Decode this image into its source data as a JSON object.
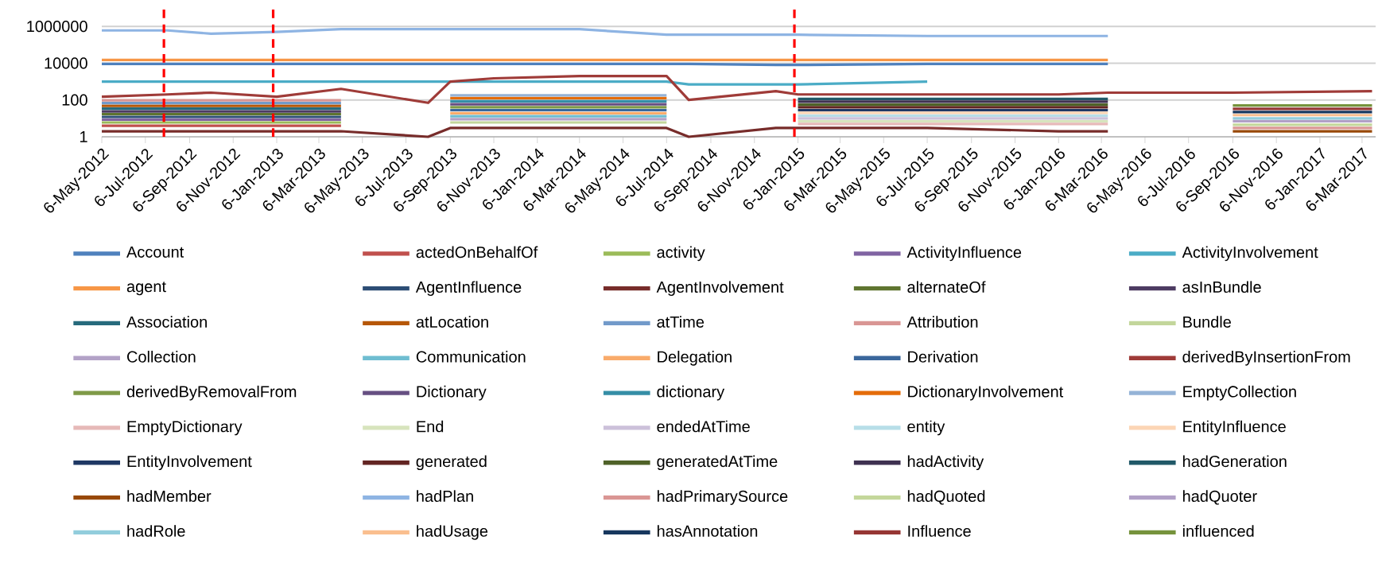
{
  "chart_data": {
    "type": "line",
    "log": "y",
    "grid": "y",
    "legend": "bottom",
    "x": [
      "2012-05-06",
      "2012-08-06",
      "2012-10-06",
      "2013-01-06",
      "2013-04-06",
      "2013-08-06",
      "2013-09-06",
      "2013-11-06",
      "2014-03-06",
      "2014-07-06",
      "2014-08-06",
      "2014-12-06",
      "2015-01-06",
      "2015-07-06",
      "2016-01-06",
      "2016-03-15",
      "2016-09-06",
      "2017-03-20"
    ],
    "xlim": [
      "2012-05-06",
      "2017-03-25"
    ],
    "xticks": [
      {
        "value": "2012-05-06",
        "label": "6-May-2012"
      },
      {
        "value": "2012-07-06",
        "label": "6-Jul-2012"
      },
      {
        "value": "2012-09-06",
        "label": "6-Sep-2012"
      },
      {
        "value": "2012-11-06",
        "label": "6-Nov-2012"
      },
      {
        "value": "2013-01-06",
        "label": "6-Jan-2013"
      },
      {
        "value": "2013-03-06",
        "label": "6-Mar-2013"
      },
      {
        "value": "2013-05-06",
        "label": "6-May-2013"
      },
      {
        "value": "2013-07-06",
        "label": "6-Jul-2013"
      },
      {
        "value": "2013-09-06",
        "label": "6-Sep-2013"
      },
      {
        "value": "2013-11-06",
        "label": "6-Nov-2013"
      },
      {
        "value": "2014-01-06",
        "label": "6-Jan-2014"
      },
      {
        "value": "2014-03-06",
        "label": "6-Mar-2014"
      },
      {
        "value": "2014-05-06",
        "label": "6-May-2014"
      },
      {
        "value": "2014-07-06",
        "label": "6-Jul-2014"
      },
      {
        "value": "2014-09-06",
        "label": "6-Sep-2014"
      },
      {
        "value": "2014-11-06",
        "label": "6-Nov-2014"
      },
      {
        "value": "2015-01-06",
        "label": "6-Jan-2015"
      },
      {
        "value": "2015-03-06",
        "label": "6-Mar-2015"
      },
      {
        "value": "2015-05-06",
        "label": "6-May-2015"
      },
      {
        "value": "2015-07-06",
        "label": "6-Jul-2015"
      },
      {
        "value": "2015-09-06",
        "label": "6-Sep-2015"
      },
      {
        "value": "2015-11-06",
        "label": "6-Nov-2015"
      },
      {
        "value": "2016-01-06",
        "label": "6-Jan-2016"
      },
      {
        "value": "2016-03-06",
        "label": "6-Mar-2016"
      },
      {
        "value": "2016-05-06",
        "label": "6-May-2016"
      },
      {
        "value": "2016-07-06",
        "label": "6-Jul-2016"
      },
      {
        "value": "2016-09-06",
        "label": "6-Sep-2016"
      },
      {
        "value": "2016-11-06",
        "label": "6-Nov-2016"
      },
      {
        "value": "2017-01-06",
        "label": "6-Jan-2017"
      },
      {
        "value": "2017-03-06",
        "label": "6-Mar-2017"
      }
    ],
    "ylim": [
      1,
      10000000
    ],
    "yticks": [
      1,
      100,
      10000,
      1000000
    ],
    "ref_lines": [
      {
        "axis": "x",
        "value": "2012-08-01",
        "color": "#ff0000",
        "line_style": "dashed"
      },
      {
        "axis": "x",
        "value": "2013-01-01",
        "color": "#ff0000",
        "line_style": "dashed"
      },
      {
        "axis": "x",
        "value": "2015-01-01",
        "color": "#ff0000",
        "line_style": "dashed"
      }
    ],
    "series": [
      {
        "name": "Account",
        "color": "#4f81bd",
        "values": [
          9000,
          9000,
          9000,
          9000,
          9000,
          9000,
          9000,
          9000,
          9000,
          9000,
          9000,
          8000,
          8000,
          9000,
          9000,
          9000,
          null,
          null
        ]
      },
      {
        "name": "actedOnBehalfOf",
        "color": "#c0504d",
        "values": [
          4,
          4,
          4,
          4,
          4,
          null,
          null,
          null,
          null,
          null,
          null,
          null,
          null,
          null,
          null,
          null,
          null,
          null
        ]
      },
      {
        "name": "activity",
        "color": "#9bbb59",
        "values": [
          6,
          6,
          6,
          6,
          6,
          null,
          null,
          null,
          null,
          null,
          null,
          null,
          null,
          null,
          null,
          null,
          null,
          null
        ]
      },
      {
        "name": "ActivityInfluence",
        "color": "#8064a2",
        "values": [
          8.5,
          8.5,
          8.5,
          8.5,
          8.5,
          null,
          null,
          null,
          null,
          null,
          null,
          null,
          null,
          null,
          null,
          null,
          null,
          null
        ]
      },
      {
        "name": "ActivityInvolvement",
        "color": "#4bacc6",
        "values": [
          1000,
          1000,
          1000,
          1000,
          1000,
          1000,
          1000,
          1000,
          1000,
          1000,
          700,
          700,
          700,
          1000,
          null,
          null,
          null,
          null
        ]
      },
      {
        "name": "agent",
        "color": "#f79646",
        "values": [
          15000,
          15000,
          15000,
          15000,
          15000,
          15000,
          15000,
          15000,
          15000,
          15000,
          15000,
          15000,
          15000,
          15000,
          15000,
          15000,
          null,
          null
        ]
      },
      {
        "name": "AgentInfluence",
        "color": "#2c4d75",
        "values": [
          12,
          12,
          12,
          12,
          12,
          null,
          null,
          null,
          null,
          null,
          null,
          null,
          null,
          null,
          null,
          null,
          null,
          null
        ]
      },
      {
        "name": "AgentInvolvement",
        "color": "#772c2a",
        "values": [
          2,
          2,
          2,
          2,
          2,
          1,
          3,
          3,
          3,
          3,
          1,
          3,
          3,
          3,
          2,
          2,
          null,
          null
        ]
      },
      {
        "name": "alternateOf",
        "color": "#5f7530",
        "values": [
          17,
          17,
          17,
          17,
          17,
          null,
          null,
          null,
          null,
          null,
          null,
          null,
          null,
          null,
          null,
          null,
          null,
          null
        ]
      },
      {
        "name": "asInBundle",
        "color": "#4d3b62",
        "values": [
          24,
          24,
          24,
          24,
          24,
          null,
          null,
          null,
          null,
          null,
          null,
          null,
          null,
          null,
          null,
          null,
          null,
          null
        ]
      },
      {
        "name": "Association",
        "color": "#276a7c",
        "values": [
          34,
          34,
          34,
          34,
          34,
          null,
          null,
          null,
          null,
          null,
          null,
          null,
          null,
          null,
          null,
          null,
          null,
          null
        ]
      },
      {
        "name": "atLocation",
        "color": "#b65708",
        "values": [
          48,
          48,
          48,
          48,
          48,
          null,
          null,
          null,
          null,
          null,
          null,
          null,
          null,
          null,
          null,
          null,
          null,
          null
        ]
      },
      {
        "name": "atTime",
        "color": "#729aca",
        "values": [
          68,
          68,
          68,
          68,
          68,
          null,
          null,
          null,
          null,
          null,
          null,
          null,
          null,
          null,
          null,
          null,
          null,
          null
        ]
      },
      {
        "name": "Attribution",
        "color": "#d99694",
        "values": [
          95,
          95,
          95,
          95,
          95,
          null,
          null,
          null,
          null,
          null,
          null,
          null,
          null,
          null,
          null,
          null,
          null,
          null
        ]
      },
      {
        "name": "Bundle",
        "color": "#c3d69b",
        "values": [
          null,
          null,
          null,
          null,
          null,
          null,
          6,
          6,
          6,
          6,
          null,
          null,
          null,
          null,
          null,
          null,
          null,
          null
        ]
      },
      {
        "name": "Collection",
        "color": "#b3a2c7",
        "values": [
          null,
          null,
          null,
          null,
          null,
          null,
          9,
          9,
          9,
          9,
          null,
          null,
          null,
          null,
          null,
          null,
          null,
          null
        ]
      },
      {
        "name": "Communication",
        "color": "#6fbdd1",
        "values": [
          null,
          null,
          null,
          null,
          null,
          null,
          13,
          13,
          13,
          13,
          null,
          null,
          null,
          null,
          null,
          null,
          null,
          null
        ]
      },
      {
        "name": "Delegation",
        "color": "#f9ab6b",
        "values": [
          null,
          null,
          null,
          null,
          null,
          null,
          19,
          19,
          19,
          19,
          null,
          null,
          null,
          null,
          null,
          null,
          null,
          null
        ]
      },
      {
        "name": "Derivation",
        "color": "#3a679c",
        "values": [
          null,
          null,
          null,
          null,
          null,
          null,
          28,
          28,
          28,
          28,
          null,
          null,
          null,
          null,
          null,
          null,
          null,
          null
        ]
      },
      {
        "name": "derivedByInsertionFrom",
        "color": "#9f3b38",
        "values": [
          150,
          200,
          250,
          150,
          400,
          70,
          1000,
          1500,
          2000,
          2000,
          100,
          300,
          200,
          200,
          200,
          250,
          250,
          300
        ]
      },
      {
        "name": "derivedByRemovalFrom",
        "color": "#7f9a48",
        "values": [
          null,
          null,
          null,
          null,
          null,
          null,
          40,
          40,
          40,
          40,
          null,
          null,
          null,
          null,
          null,
          null,
          null,
          null
        ]
      },
      {
        "name": "Dictionary",
        "color": "#664f82",
        "values": [
          null,
          null,
          null,
          null,
          null,
          null,
          58,
          58,
          58,
          58,
          null,
          null,
          null,
          null,
          null,
          null,
          null,
          null
        ]
      },
      {
        "name": "dictionary",
        "color": "#358ea6",
        "values": [
          null,
          null,
          null,
          null,
          null,
          null,
          85,
          85,
          85,
          85,
          null,
          null,
          null,
          null,
          null,
          null,
          null,
          null
        ]
      },
      {
        "name": "DictionaryInvolvement",
        "color": "#e46c0a",
        "values": [
          null,
          null,
          null,
          null,
          null,
          null,
          125,
          125,
          125,
          125,
          null,
          null,
          null,
          null,
          null,
          null,
          null,
          null
        ]
      },
      {
        "name": "EmptyCollection",
        "color": "#95b3d7",
        "values": [
          null,
          null,
          null,
          null,
          null,
          null,
          180,
          180,
          180,
          180,
          null,
          null,
          null,
          null,
          null,
          null,
          null,
          null
        ]
      },
      {
        "name": "EmptyDictionary",
        "color": "#e6b9b8",
        "values": [
          null,
          null,
          null,
          null,
          null,
          null,
          null,
          null,
          null,
          null,
          null,
          null,
          5,
          5,
          5,
          5,
          null,
          null
        ]
      },
      {
        "name": "End",
        "color": "#d7e4bd",
        "values": [
          null,
          null,
          null,
          null,
          null,
          null,
          null,
          null,
          null,
          null,
          null,
          null,
          7,
          7,
          7,
          7,
          null,
          null
        ]
      },
      {
        "name": "endedAtTime",
        "color": "#ccc1da",
        "values": [
          null,
          null,
          null,
          null,
          null,
          null,
          null,
          null,
          null,
          null,
          null,
          null,
          10,
          10,
          10,
          10,
          null,
          null
        ]
      },
      {
        "name": "entity",
        "color": "#b7dee8",
        "values": [
          null,
          null,
          null,
          null,
          null,
          null,
          null,
          null,
          null,
          null,
          null,
          null,
          14,
          14,
          14,
          14,
          null,
          null
        ]
      },
      {
        "name": "EntityInfluence",
        "color": "#fcd5b5",
        "values": [
          null,
          null,
          null,
          null,
          null,
          null,
          null,
          null,
          null,
          null,
          null,
          null,
          20,
          20,
          20,
          20,
          null,
          null
        ]
      },
      {
        "name": "EntityInvolvement",
        "color": "#1f3864",
        "values": [
          null,
          null,
          null,
          null,
          null,
          null,
          null,
          null,
          null,
          null,
          null,
          null,
          28,
          28,
          28,
          28,
          null,
          null
        ]
      },
      {
        "name": "generated",
        "color": "#632523",
        "values": [
          null,
          null,
          null,
          null,
          null,
          null,
          null,
          null,
          null,
          null,
          null,
          null,
          40,
          40,
          40,
          40,
          null,
          null
        ]
      },
      {
        "name": "generatedAtTime",
        "color": "#4f6228",
        "values": [
          null,
          null,
          null,
          null,
          null,
          null,
          null,
          null,
          null,
          null,
          null,
          null,
          56,
          56,
          56,
          56,
          null,
          null
        ]
      },
      {
        "name": "hadActivity",
        "color": "#3f3151",
        "values": [
          null,
          null,
          null,
          null,
          null,
          null,
          null,
          null,
          null,
          null,
          null,
          null,
          80,
          80,
          80,
          80,
          null,
          null
        ]
      },
      {
        "name": "hadGeneration",
        "color": "#215968",
        "values": [
          null,
          null,
          null,
          null,
          null,
          null,
          null,
          null,
          null,
          null,
          null,
          null,
          115,
          115,
          115,
          115,
          null,
          null
        ]
      },
      {
        "name": "hadMember",
        "color": "#984807",
        "values": [
          null,
          null,
          null,
          null,
          null,
          null,
          null,
          null,
          null,
          null,
          null,
          null,
          null,
          null,
          null,
          null,
          2,
          2
        ]
      },
      {
        "name": "hadPlan",
        "color": "#8eb4e3",
        "values": [
          600000,
          600000,
          400000,
          500000,
          700000,
          700000,
          700000,
          700000,
          700000,
          350000,
          350000,
          350000,
          350000,
          300000,
          300000,
          300000,
          null,
          null
        ]
      },
      {
        "name": "hadPrimarySource",
        "color": "#da9694",
        "values": [
          null,
          null,
          null,
          null,
          null,
          null,
          null,
          null,
          null,
          null,
          null,
          null,
          null,
          null,
          null,
          null,
          3,
          3
        ]
      },
      {
        "name": "hadQuoted",
        "color": "#c4d79b",
        "values": [
          null,
          null,
          null,
          null,
          null,
          null,
          null,
          null,
          null,
          null,
          null,
          null,
          null,
          null,
          null,
          null,
          4.5,
          4.5
        ]
      },
      {
        "name": "hadQuoter",
        "color": "#b1a0c7",
        "values": [
          null,
          null,
          null,
          null,
          null,
          null,
          null,
          null,
          null,
          null,
          null,
          null,
          null,
          null,
          null,
          null,
          7,
          7
        ]
      },
      {
        "name": "hadRole",
        "color": "#92cddc",
        "values": [
          null,
          null,
          null,
          null,
          null,
          null,
          null,
          null,
          null,
          null,
          null,
          null,
          null,
          null,
          null,
          null,
          10,
          10
        ]
      },
      {
        "name": "hadUsage",
        "color": "#fabf8f",
        "values": [
          null,
          null,
          null,
          null,
          null,
          null,
          null,
          null,
          null,
          null,
          null,
          null,
          null,
          null,
          null,
          null,
          15,
          15
        ]
      },
      {
        "name": "hasAnnotation",
        "color": "#17375e",
        "values": [
          null,
          null,
          null,
          null,
          null,
          null,
          null,
          null,
          null,
          null,
          null,
          null,
          null,
          null,
          null,
          null,
          22,
          22
        ]
      },
      {
        "name": "Influence",
        "color": "#963634",
        "values": [
          null,
          null,
          null,
          null,
          null,
          null,
          null,
          null,
          null,
          null,
          null,
          null,
          null,
          null,
          null,
          null,
          33,
          33
        ]
      },
      {
        "name": "influenced",
        "color": "#76933c",
        "values": [
          null,
          null,
          null,
          null,
          null,
          null,
          null,
          null,
          null,
          null,
          null,
          null,
          null,
          null,
          null,
          null,
          50,
          50
        ]
      }
    ]
  }
}
